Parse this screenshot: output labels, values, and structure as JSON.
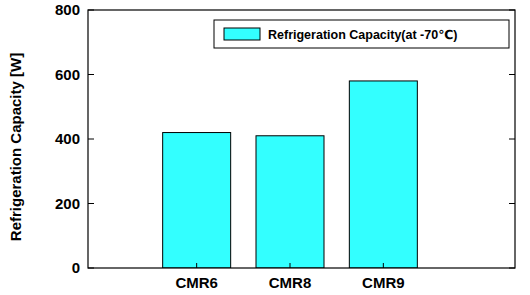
{
  "chart_data": {
    "type": "bar",
    "y_label": "Refrigeration Capacity [W]",
    "categories": [
      "CMR6",
      "CMR8",
      "CMR9"
    ],
    "series": [
      {
        "name": "Refrigeration Capacity(at -70℃)",
        "color": "#33ffff",
        "values": [
          420,
          410,
          580
        ]
      }
    ],
    "ylim": [
      0,
      800
    ],
    "yticks": [
      0,
      200,
      400,
      600,
      800
    ],
    "grid": false,
    "legend": "upper right"
  }
}
